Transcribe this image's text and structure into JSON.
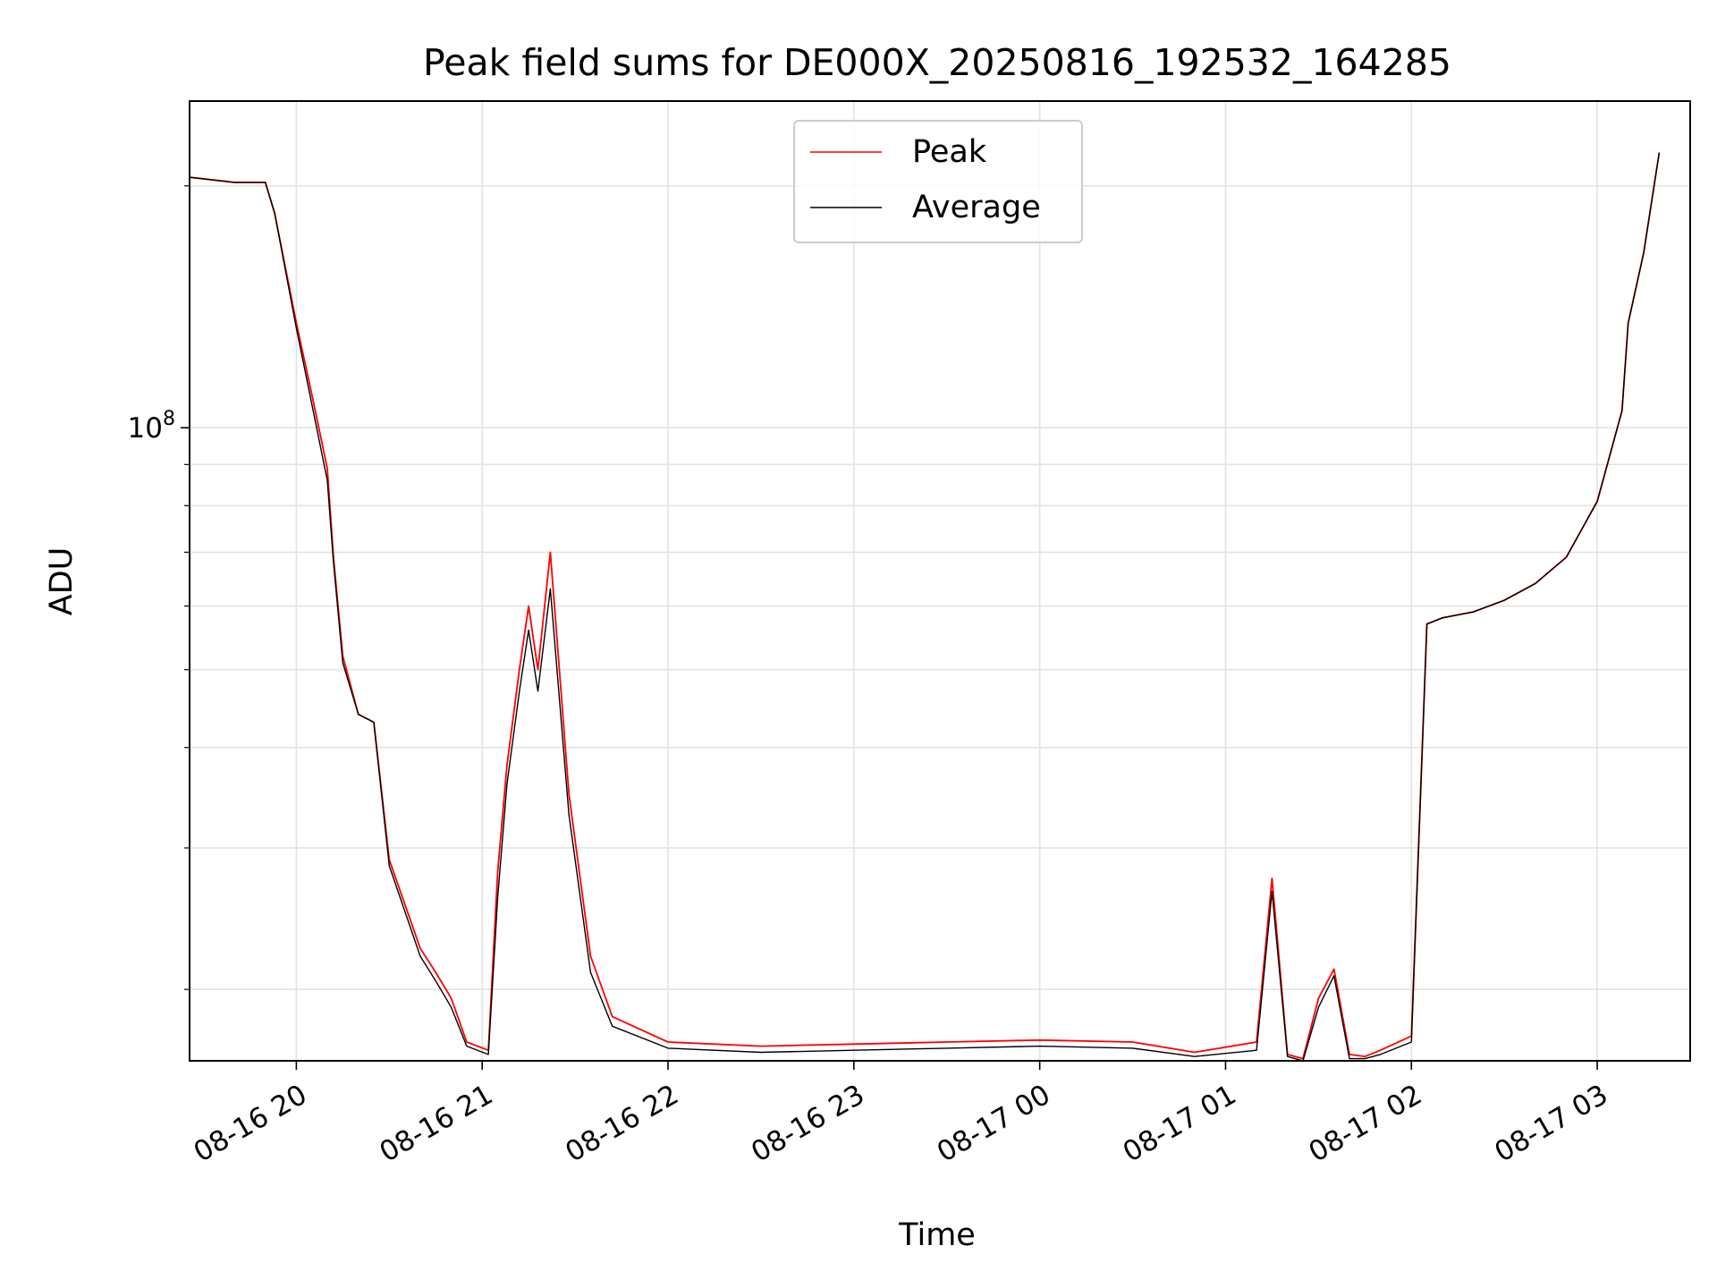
{
  "chart_data": {
    "type": "line",
    "title": "Peak field sums for DE000X_20250816_192532_164285",
    "xlabel": "Time",
    "ylabel": "ADU",
    "yscale": "log",
    "ylim": [
      16300000.0,
      255000000.0
    ],
    "xlim": [
      "2025-08-16 19:25:32",
      "2025-08-17 03:30:00"
    ],
    "grid": true,
    "legend_position": "upper center",
    "x_tick_labels": [
      "08-16 20",
      "08-16 21",
      "08-16 22",
      "08-16 23",
      "08-17 00",
      "08-17 01",
      "08-17 02",
      "08-17 03"
    ],
    "x_ticks": [
      "2025-08-16 20:00",
      "2025-08-16 21:00",
      "2025-08-16 22:00",
      "2025-08-16 23:00",
      "2025-08-17 00:00",
      "2025-08-17 01:00",
      "2025-08-17 02:00",
      "2025-08-17 03:00"
    ],
    "y_major_ticks": [
      {
        "value": 100000000.0,
        "base": "10",
        "exponent": "8"
      }
    ],
    "y_minor_ticks": [
      20000000.0,
      30000000.0,
      40000000.0,
      50000000.0,
      60000000.0,
      70000000.0,
      80000000.0,
      90000000.0,
      200000000.0
    ],
    "series": [
      {
        "name": "Peak",
        "color": "#ff0000",
        "x": [
          "2025-08-16 19:25:32",
          "2025-08-16 19:40",
          "2025-08-16 19:50",
          "2025-08-16 19:53",
          "2025-08-16 20:00",
          "2025-08-16 20:05",
          "2025-08-16 20:10",
          "2025-08-16 20:12",
          "2025-08-16 20:15",
          "2025-08-16 20:20",
          "2025-08-16 20:25",
          "2025-08-16 20:30",
          "2025-08-16 20:40",
          "2025-08-16 20:45",
          "2025-08-16 20:50",
          "2025-08-16 20:55",
          "2025-08-16 21:02",
          "2025-08-16 21:05",
          "2025-08-16 21:08",
          "2025-08-16 21:12",
          "2025-08-16 21:15",
          "2025-08-16 21:18",
          "2025-08-16 21:22",
          "2025-08-16 21:28",
          "2025-08-16 21:35",
          "2025-08-16 21:42",
          "2025-08-16 22:00",
          "2025-08-16 22:30",
          "2025-08-16 23:00",
          "2025-08-16 23:30",
          "2025-08-17 00:00",
          "2025-08-17 00:30",
          "2025-08-17 00:50",
          "2025-08-17 01:10",
          "2025-08-17 01:15",
          "2025-08-17 01:20",
          "2025-08-17 01:25",
          "2025-08-17 01:30",
          "2025-08-17 01:35",
          "2025-08-17 01:40",
          "2025-08-17 01:45",
          "2025-08-17 01:50",
          "2025-08-17 02:00",
          "2025-08-17 02:05",
          "2025-08-17 02:10",
          "2025-08-17 02:20",
          "2025-08-17 02:30",
          "2025-08-17 02:40",
          "2025-08-17 02:50",
          "2025-08-17 03:00",
          "2025-08-17 03:08",
          "2025-08-17 03:10",
          "2025-08-17 03:15",
          "2025-08-17 03:20"
        ],
        "values": [
          205000000.0,
          202000000.0,
          202000000.0,
          185000000.0,
          135000000.0,
          110000000.0,
          89000000.0,
          69000000.0,
          52000000.0,
          44000000.0,
          43000000.0,
          29000000.0,
          22500000.0,
          21000000.0,
          19500000.0,
          17200000.0,
          16800000.0,
          28000000.0,
          38000000.0,
          50000000.0,
          60000000.0,
          50000000.0,
          70000000.0,
          35000000.0,
          22000000.0,
          18500000.0,
          17200000.0,
          17000000.0,
          17100000.0,
          17200000.0,
          17300000.0,
          17200000.0,
          16700000.0,
          17200000.0,
          27500000.0,
          16600000.0,
          16400000.0,
          19500000.0,
          21200000.0,
          16600000.0,
          16500000.0,
          16800000.0,
          17500000.0,
          57000000.0,
          58000000.0,
          59000000.0,
          61000000.0,
          64000000.0,
          69000000.0,
          81000000.0,
          105000000.0,
          135000000.0,
          165000000.0,
          220000000.0
        ]
      },
      {
        "name": "Average",
        "color": "#000000",
        "x": [
          "2025-08-16 19:25:32",
          "2025-08-16 19:40",
          "2025-08-16 19:50",
          "2025-08-16 19:53",
          "2025-08-16 20:00",
          "2025-08-16 20:05",
          "2025-08-16 20:10",
          "2025-08-16 20:12",
          "2025-08-16 20:15",
          "2025-08-16 20:20",
          "2025-08-16 20:25",
          "2025-08-16 20:30",
          "2025-08-16 20:40",
          "2025-08-16 20:45",
          "2025-08-16 20:50",
          "2025-08-16 20:55",
          "2025-08-16 21:02",
          "2025-08-16 21:05",
          "2025-08-16 21:08",
          "2025-08-16 21:12",
          "2025-08-16 21:15",
          "2025-08-16 21:18",
          "2025-08-16 21:22",
          "2025-08-16 21:28",
          "2025-08-16 21:35",
          "2025-08-16 21:42",
          "2025-08-16 22:00",
          "2025-08-16 22:30",
          "2025-08-16 23:00",
          "2025-08-16 23:30",
          "2025-08-17 00:00",
          "2025-08-17 00:30",
          "2025-08-17 00:50",
          "2025-08-17 01:10",
          "2025-08-17 01:15",
          "2025-08-17 01:20",
          "2025-08-17 01:25",
          "2025-08-17 01:30",
          "2025-08-17 01:35",
          "2025-08-17 01:40",
          "2025-08-17 01:45",
          "2025-08-17 01:50",
          "2025-08-17 02:00",
          "2025-08-17 02:05",
          "2025-08-17 02:10",
          "2025-08-17 02:20",
          "2025-08-17 02:30",
          "2025-08-17 02:40",
          "2025-08-17 02:50",
          "2025-08-17 03:00",
          "2025-08-17 03:08",
          "2025-08-17 03:10",
          "2025-08-17 03:15",
          "2025-08-17 03:20"
        ],
        "values": [
          205000000.0,
          202000000.0,
          202000000.0,
          185000000.0,
          133000000.0,
          107000000.0,
          86000000.0,
          68000000.0,
          51000000.0,
          44000000.0,
          43000000.0,
          28500000.0,
          22000000.0,
          20500000.0,
          19000000.0,
          17000000.0,
          16600000.0,
          26000000.0,
          36000000.0,
          47000000.0,
          56000000.0,
          47000000.0,
          63000000.0,
          33000000.0,
          21000000.0,
          18000000.0,
          16900000.0,
          16700000.0,
          16800000.0,
          16900000.0,
          17000000.0,
          16900000.0,
          16500000.0,
          16800000.0,
          26500000.0,
          16500000.0,
          16300000.0,
          19000000.0,
          20800000.0,
          16400000.0,
          16400000.0,
          16600000.0,
          17200000.0,
          57000000.0,
          58000000.0,
          59000000.0,
          61000000.0,
          64000000.0,
          69000000.0,
          81000000.0,
          105000000.0,
          135000000.0,
          165000000.0,
          220000000.0
        ]
      }
    ]
  }
}
